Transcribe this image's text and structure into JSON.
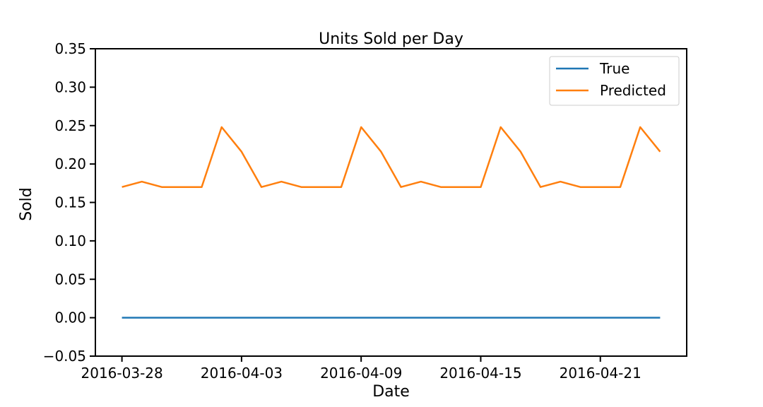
{
  "chart_data": {
    "type": "line",
    "title": "Units Sold per Day",
    "xlabel": "Date",
    "ylabel": "Sold",
    "x": [
      "2016-03-28",
      "2016-03-29",
      "2016-03-30",
      "2016-03-31",
      "2016-04-01",
      "2016-04-02",
      "2016-04-03",
      "2016-04-04",
      "2016-04-05",
      "2016-04-06",
      "2016-04-07",
      "2016-04-08",
      "2016-04-09",
      "2016-04-10",
      "2016-04-11",
      "2016-04-12",
      "2016-04-13",
      "2016-04-14",
      "2016-04-15",
      "2016-04-16",
      "2016-04-17",
      "2016-04-18",
      "2016-04-19",
      "2016-04-20",
      "2016-04-21",
      "2016-04-22",
      "2016-04-23",
      "2016-04-24"
    ],
    "xlim": [
      "2016-03-26T16:00",
      "2016-04-25T08:00"
    ],
    "xticks": [
      "2016-03-28",
      "2016-04-03",
      "2016-04-09",
      "2016-04-15",
      "2016-04-21"
    ],
    "ylim": [
      -0.05,
      0.35
    ],
    "yticks": [
      -0.05,
      0.0,
      0.05,
      0.1,
      0.15,
      0.2,
      0.25,
      0.3,
      0.35
    ],
    "ytick_labels": [
      "−0.05",
      "0.00",
      "0.05",
      "0.10",
      "0.15",
      "0.20",
      "0.25",
      "0.30",
      "0.35"
    ],
    "grid": false,
    "legend_position": "top-right",
    "series": [
      {
        "name": "True",
        "color": "#1f77b4",
        "values": [
          0,
          0,
          0,
          0,
          0,
          0,
          0,
          0,
          0,
          0,
          0,
          0,
          0,
          0,
          0,
          0,
          0,
          0,
          0,
          0,
          0,
          0,
          0,
          0,
          0,
          0,
          0,
          0
        ]
      },
      {
        "name": "Predicted",
        "color": "#ff7f0e",
        "values": [
          0.17,
          0.177,
          0.17,
          0.17,
          0.17,
          0.248,
          0.216,
          0.17,
          0.177,
          0.17,
          0.17,
          0.17,
          0.248,
          0.216,
          0.17,
          0.177,
          0.17,
          0.17,
          0.17,
          0.248,
          0.216,
          0.17,
          0.177,
          0.17,
          0.17,
          0.17,
          0.248,
          0.216
        ]
      }
    ]
  }
}
